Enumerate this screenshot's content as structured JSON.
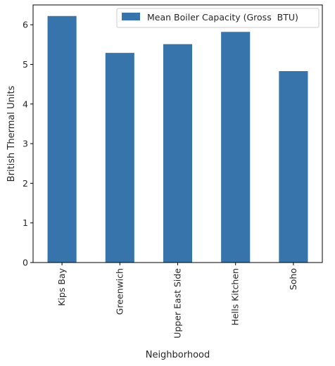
{
  "chart_data": {
    "type": "bar",
    "title": "",
    "xlabel": "Neighborhood",
    "ylabel": "British Thermal Units",
    "categories": [
      "Kips Bay",
      "Greenwich",
      "Upper East Side",
      "Hells Kitchen",
      "Soho"
    ],
    "series": [
      {
        "name": "Mean Boiler Capacity (Gross  BTU)",
        "values": [
          6.22,
          5.29,
          5.51,
          5.82,
          4.83
        ],
        "color": "#3674ab"
      }
    ],
    "ylim": [
      0,
      6.5
    ],
    "yticks": [
      0,
      1,
      2,
      3,
      4,
      5,
      6
    ],
    "grid": false,
    "legend_position": "upper right",
    "xtick_rotation": "vertical"
  }
}
